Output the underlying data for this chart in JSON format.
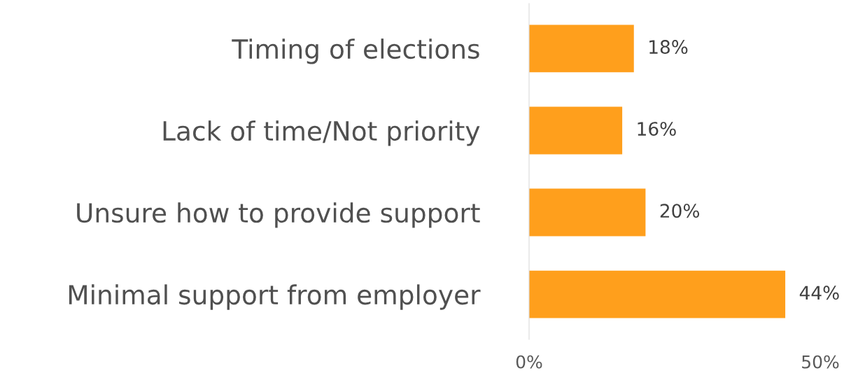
{
  "chart_data": {
    "type": "bar",
    "orientation": "horizontal",
    "categories": [
      "Timing of elections",
      "Lack of time/Not priority",
      "Unsure how to provide support",
      "Minimal support from employer"
    ],
    "values": [
      18,
      16,
      20,
      44
    ],
    "value_labels": [
      "18%",
      "16%",
      "20%",
      "44%"
    ],
    "color": "#ff9f1c",
    "xlim": [
      0,
      50
    ],
    "xticks": [
      {
        "value": 0,
        "label": "0%"
      },
      {
        "value": 50,
        "label": "50%"
      }
    ],
    "grid": false,
    "legend": false
  }
}
